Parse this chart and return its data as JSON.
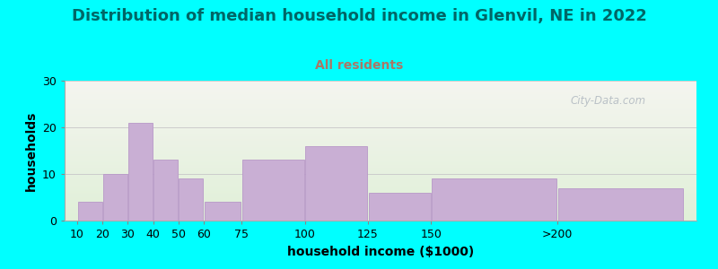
{
  "title": "Distribution of median household income in Glenvil, NE in 2022",
  "subtitle": "All residents",
  "xlabel": "household income ($1000)",
  "ylabel": "households",
  "background_color": "#00FFFF",
  "plot_bg_top": "#f5f5f0",
  "plot_bg_bottom": "#e0f0d8",
  "bar_color": "#c9afd4",
  "bar_edge_color": "#b899c8",
  "title_color": "#006666",
  "subtitle_color": "#aa7766",
  "watermark_color": "#b0b8c0",
  "categories": [
    "10",
    "20",
    "30",
    "40",
    "50",
    "60",
    "75",
    "100",
    "125",
    "150",
    ">200"
  ],
  "values": [
    4,
    10,
    21,
    13,
    9,
    4,
    13,
    16,
    6,
    9,
    7
  ],
  "positions": [
    10,
    20,
    30,
    40,
    50,
    60,
    75,
    100,
    125,
    150,
    200
  ],
  "widths": [
    10,
    10,
    10,
    10,
    10,
    15,
    25,
    25,
    25,
    50,
    50
  ],
  "ylim": [
    0,
    30
  ],
  "yticks": [
    0,
    10,
    20,
    30
  ],
  "xlim_min": 5,
  "xlim_max": 255,
  "watermark": "City-Data.com",
  "title_fontsize": 13,
  "subtitle_fontsize": 10,
  "label_fontsize": 10,
  "tick_fontsize": 9
}
